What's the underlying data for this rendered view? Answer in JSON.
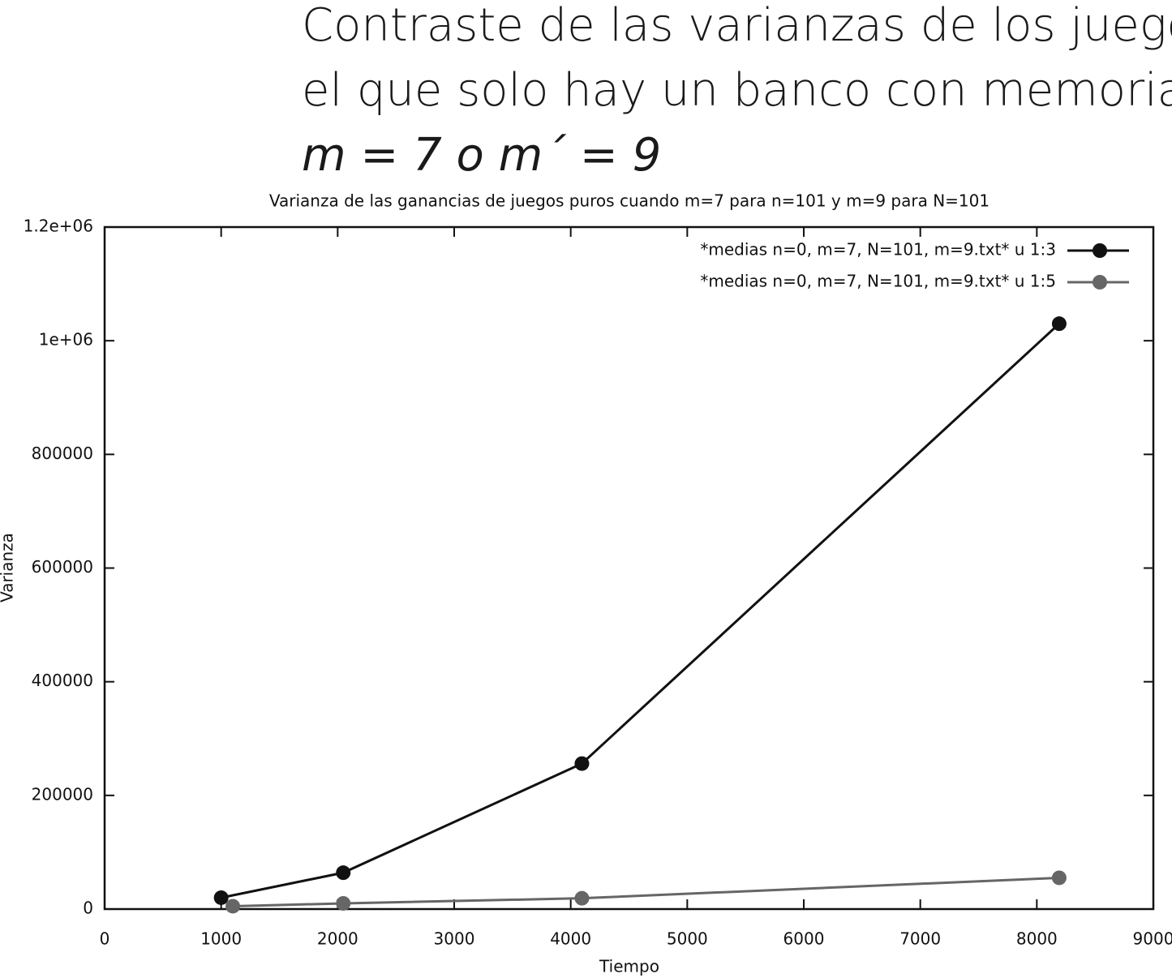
{
  "header": {
    "lines": [
      "Contraste de las varianzas de los juegos en",
      "el que solo hay un banco con memoria",
      "m = 7 o m´ = 9"
    ]
  },
  "chart_data": {
    "type": "line",
    "title": "Varianza de las ganancias de juegos puros cuando m=7 para n=101 y m=9 para N=101",
    "x_label": "Tiempo",
    "y_label": "Varianza",
    "xlim": [
      0,
      9000
    ],
    "xticks": [
      0,
      1000,
      2000,
      3000,
      4000,
      5000,
      6000,
      7000,
      8000,
      9000
    ],
    "ylim": [
      0,
      1200000
    ],
    "yticks": [
      0,
      200000,
      400000,
      600000,
      800000,
      {
        "value": 1000000,
        "label": "1e+06"
      },
      {
        "value": 1200000,
        "label": "1.2e+06"
      }
    ],
    "legend": "top-right",
    "series": [
      {
        "name": "*medias n=0, m=7, N=101, m=9.txt* u 1:3",
        "color": "#111111",
        "x": [
          1000,
          2048,
          4096,
          8192
        ],
        "values": [
          20000,
          64000,
          256000,
          1030000
        ]
      },
      {
        "name": "*medias n=0, m=7, N=101, m=9.txt* u 1:5",
        "color": "#666666",
        "x": [
          1100,
          2048,
          4096,
          8192
        ],
        "values": [
          5000,
          10000,
          19000,
          55000
        ]
      }
    ]
  }
}
